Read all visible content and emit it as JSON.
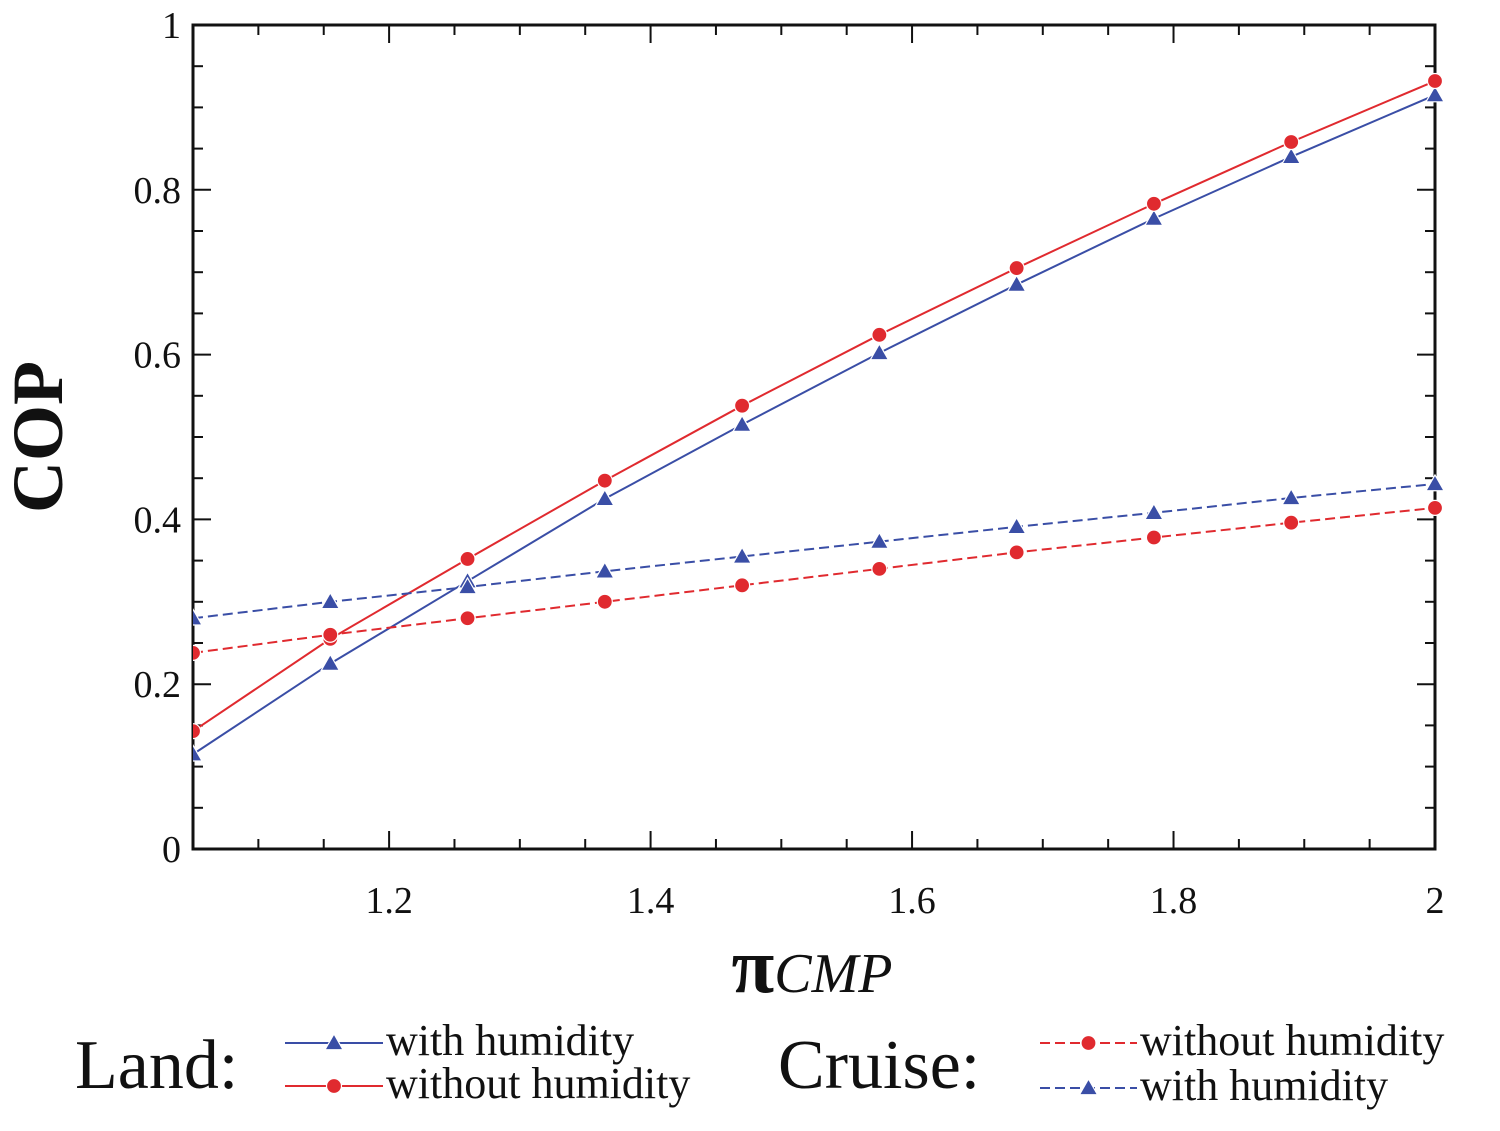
{
  "chart_data": {
    "type": "line",
    "title": "",
    "xlabel": "πCMP",
    "xlabel_symbol": "π",
    "xlabel_sub": "CMP",
    "ylabel": "COP",
    "xlim": [
      1.05,
      2.0
    ],
    "ylim": [
      0,
      1
    ],
    "xticks": [
      1.2,
      1.4,
      1.6,
      1.8,
      2.0
    ],
    "xtick_labels": [
      "1.2",
      "1.4",
      "1.6",
      "1.8",
      "2"
    ],
    "yticks": [
      0,
      0.2,
      0.4,
      0.6,
      0.8,
      1.0
    ],
    "ytick_labels": [
      "0",
      "0.2",
      "0.4",
      "0.6",
      "0.8",
      "1"
    ],
    "x": [
      1.05,
      1.155,
      1.26,
      1.365,
      1.47,
      1.575,
      1.68,
      1.785,
      1.89,
      2.0
    ],
    "series": [
      {
        "name": "Land: with humidity",
        "group": "Land",
        "legend_label": "with humidity",
        "color": "#3a4ea6",
        "marker": "triangle",
        "dashed": false,
        "values": [
          0.115,
          0.225,
          0.325,
          0.425,
          0.515,
          0.602,
          0.685,
          0.765,
          0.84,
          0.915
        ]
      },
      {
        "name": "Land: without humidity",
        "group": "Land",
        "legend_label": "without humidity",
        "color": "#e02a2f",
        "marker": "circle",
        "dashed": false,
        "values": [
          0.143,
          0.255,
          0.352,
          0.447,
          0.538,
          0.624,
          0.705,
          0.783,
          0.858,
          0.932
        ]
      },
      {
        "name": "Cruise: without humidity",
        "group": "Cruise",
        "legend_label": "without humidity",
        "color": "#e02a2f",
        "marker": "circle",
        "dashed": true,
        "values": [
          0.238,
          0.26,
          0.28,
          0.3,
          0.32,
          0.34,
          0.36,
          0.378,
          0.396,
          0.414
        ]
      },
      {
        "name": "Cruise: with humidity",
        "group": "Cruise",
        "legend_label": "with humidity",
        "color": "#3a4ea6",
        "marker": "triangle",
        "dashed": true,
        "values": [
          0.28,
          0.3,
          0.318,
          0.337,
          0.355,
          0.373,
          0.391,
          0.408,
          0.426,
          0.443
        ]
      }
    ],
    "legend": {
      "placement": "bottom",
      "groups": [
        {
          "label": "Land:",
          "series_indices": [
            0,
            1
          ]
        },
        {
          "label": "Cruise:",
          "series_indices": [
            2,
            3
          ]
        }
      ]
    }
  }
}
